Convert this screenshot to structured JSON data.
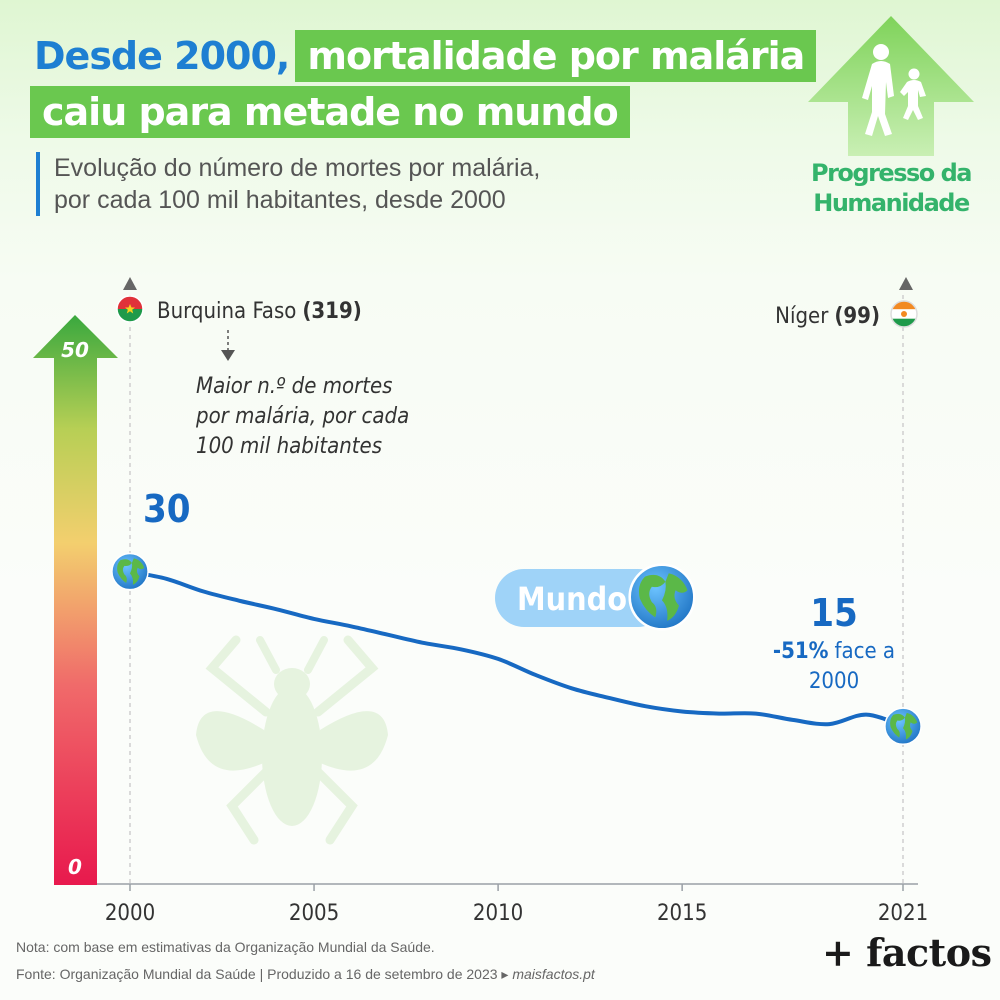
{
  "title": {
    "part1": "Desde 2000,",
    "part2": "mortalidade por malária",
    "line2": "caiu para metade no mundo"
  },
  "subtitle": {
    "line1": "Evolução do número de mortes por malária,",
    "line2": "por cada 100 mil habitantes, desde 2000"
  },
  "brand": {
    "line1": "Progresso da",
    "line2": "Humanidade"
  },
  "chart_data": {
    "type": "line",
    "series": [
      {
        "name": "Mundo",
        "x": [
          2000,
          2001,
          2002,
          2003,
          2004,
          2005,
          2006,
          2007,
          2008,
          2009,
          2010,
          2011,
          2012,
          2013,
          2014,
          2015,
          2016,
          2017,
          2018,
          2019,
          2020,
          2021
        ],
        "values": [
          29.7,
          29.0,
          27.8,
          26.9,
          26.1,
          25.2,
          24.5,
          23.7,
          22.9,
          22.3,
          21.4,
          19.9,
          18.6,
          17.7,
          16.9,
          16.4,
          16.2,
          16.2,
          15.6,
          15.2,
          16.1,
          15.0
        ],
        "color": "#1769c2"
      }
    ],
    "xlim": [
      2000,
      2021
    ],
    "ylim": [
      0,
      50
    ],
    "xticks": [
      "2000",
      "2005",
      "2010",
      "2015",
      "2021"
    ],
    "scale_labels": {
      "max": "50",
      "min": "0"
    },
    "start_label": "30",
    "end_label": "15",
    "end_change": {
      "pct": "-51%",
      "text": "face a",
      "year": "2000"
    },
    "series_label": "Mundo",
    "left_marker": {
      "country": "Burquina Faso",
      "value": "(319)"
    },
    "right_marker": {
      "country": "Níger",
      "value": "(99)"
    },
    "annotation": [
      "Maior n.º de mortes",
      "por malária, por cada",
      "100 mil habitantes"
    ]
  },
  "notes": {
    "note": "Nota: com base em estimativas da Organização Mundial da Saúde.",
    "source": "Fonte: Organização Mundial da Saúde  |  Produzido a 16 de setembro de 2023 ▸ ",
    "site": "maisfactos.pt"
  },
  "logo": "+ factos"
}
